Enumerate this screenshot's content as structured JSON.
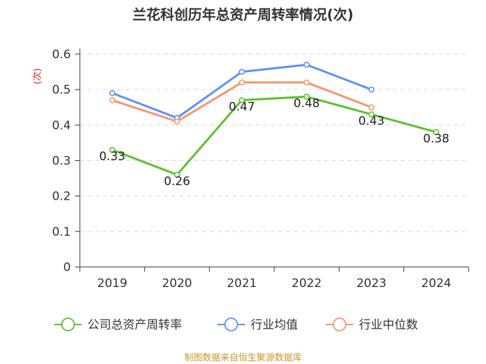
{
  "chart_data": {
    "type": "line",
    "title": "兰花科创历年总资产周转率情况(次)",
    "ylabel": "(次)",
    "xlabel": "",
    "categories": [
      "2019",
      "2020",
      "2021",
      "2022",
      "2023",
      "2024"
    ],
    "ylim": [
      0,
      0.6
    ],
    "yticks": [
      "0",
      "0.1",
      "0.2",
      "0.3",
      "0.4",
      "0.5",
      "0.6"
    ],
    "grid": true,
    "legend_position": "bottom",
    "series": [
      {
        "name": "公司总资产周转率",
        "color": "#5cc02c",
        "values": [
          0.33,
          0.26,
          0.47,
          0.48,
          0.43,
          0.38
        ],
        "labels": [
          "0.33",
          "0.26",
          "0.47",
          "0.48",
          "0.43",
          "0.38"
        ]
      },
      {
        "name": "行业均值",
        "color": "#5b8ff9",
        "values": [
          0.49,
          0.42,
          0.55,
          0.57,
          0.5,
          null
        ]
      },
      {
        "name": "行业中位数",
        "color": "#f7956b",
        "values": [
          0.47,
          0.41,
          0.52,
          0.52,
          0.45,
          null
        ]
      }
    ],
    "source": "制图数据来自恒生聚源数据库"
  }
}
